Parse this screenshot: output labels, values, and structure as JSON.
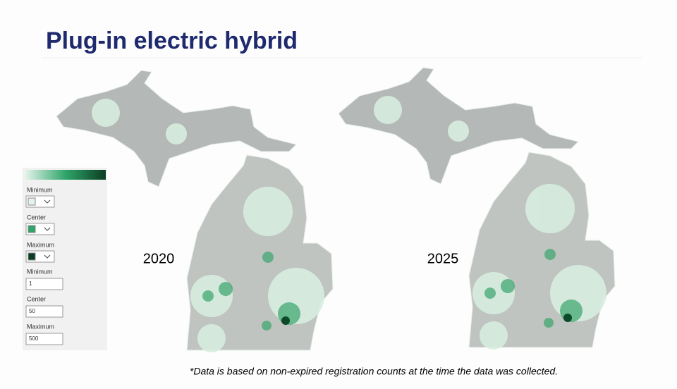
{
  "header": {
    "title": "Plug-in electric hybrid"
  },
  "maps": [
    {
      "label": "2020"
    },
    {
      "label": "2025"
    }
  ],
  "legend_panel": {
    "color_settings": [
      {
        "label": "Minimum"
      },
      {
        "label": "Center"
      },
      {
        "label": "Maximum"
      }
    ],
    "value_settings": [
      {
        "label": "Minimum",
        "value": 1
      },
      {
        "label": "Center",
        "value": 50
      },
      {
        "label": "Maximum",
        "value": 500
      }
    ]
  },
  "footnote": "*Data is based on non-expired registration counts at the time the data was collected."
}
